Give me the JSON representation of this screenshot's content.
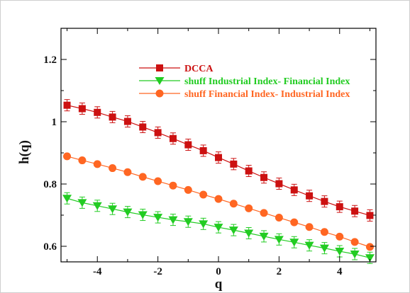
{
  "chart_data": {
    "type": "line",
    "title": "",
    "xlabel": "q",
    "ylabel": "h(q)",
    "xlim": [
      -5.2,
      5.2
    ],
    "ylim": [
      0.55,
      1.3
    ],
    "x_ticks": [
      -4,
      -2,
      0,
      2,
      4
    ],
    "x_tick_labels": [
      "-4",
      "-2",
      "0",
      "2",
      "4"
    ],
    "y_ticks": [
      0.6,
      0.8,
      1.0,
      1.2
    ],
    "y_tick_labels": [
      "0.6",
      "0.8",
      "1",
      "1.2"
    ],
    "grid": false,
    "legend_position": "top-center",
    "x": [
      -5,
      -4.5,
      -4,
      -3.5,
      -3,
      -2.5,
      -2,
      -1.5,
      -1,
      -0.5,
      0,
      0.5,
      1,
      1.5,
      2,
      2.5,
      3,
      3.5,
      4,
      4.5,
      5
    ],
    "series": [
      {
        "name": "DCCA",
        "color": "#cc1111",
        "marker": "square",
        "error_bars": true,
        "values": [
          1.053,
          1.042,
          1.03,
          1.015,
          1.001,
          0.983,
          0.965,
          0.946,
          0.926,
          0.907,
          0.885,
          0.864,
          0.842,
          0.821,
          0.801,
          0.781,
          0.762,
          0.744,
          0.727,
          0.713,
          0.699
        ]
      },
      {
        "name": "shuff Industrial Index- Financial Index",
        "color": "#22cc22",
        "marker": "triangle-down",
        "error_bars": true,
        "values": [
          0.754,
          0.74,
          0.73,
          0.72,
          0.71,
          0.701,
          0.693,
          0.685,
          0.679,
          0.672,
          0.661,
          0.652,
          0.642,
          0.632,
          0.622,
          0.613,
          0.603,
          0.594,
          0.584,
          0.575,
          0.563
        ]
      },
      {
        "name": "shuff Financial Index- Industrial Index",
        "color": "#ff6622",
        "marker": "circle",
        "error_bars": false,
        "values": [
          0.889,
          0.876,
          0.864,
          0.851,
          0.838,
          0.823,
          0.809,
          0.795,
          0.781,
          0.766,
          0.752,
          0.737,
          0.722,
          0.707,
          0.692,
          0.677,
          0.662,
          0.646,
          0.631,
          0.614,
          0.598
        ]
      }
    ]
  }
}
